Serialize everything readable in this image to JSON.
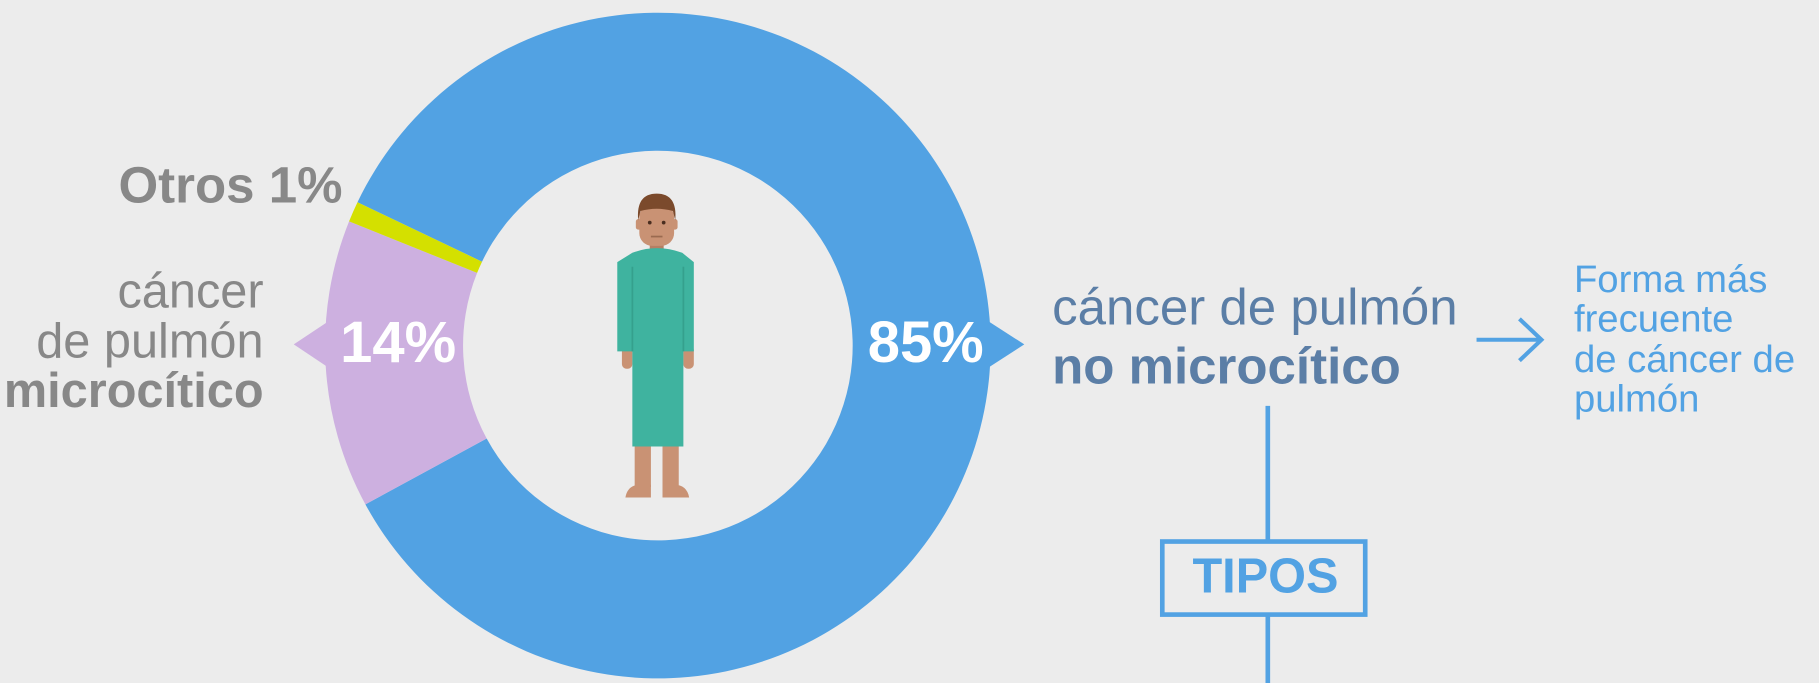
{
  "chart_data": {
    "type": "donut",
    "slices": [
      {
        "label_lines": [
          "cáncer de pulmón",
          "no microcítico"
        ],
        "value": 85,
        "value_label": "85%",
        "color": "#52a2e3"
      },
      {
        "label_lines": [
          "cáncer",
          "de pulmón",
          "microcítico"
        ],
        "value": 14,
        "value_label": "14%",
        "color": "#cdb0e0"
      },
      {
        "label": "Otros 1%",
        "value": 1,
        "color": "#d4e000"
      }
    ],
    "annotation_lines": [
      "Forma más",
      "frecuente",
      "de cáncer de",
      "pulmón"
    ],
    "box_label": "TIPOS"
  }
}
